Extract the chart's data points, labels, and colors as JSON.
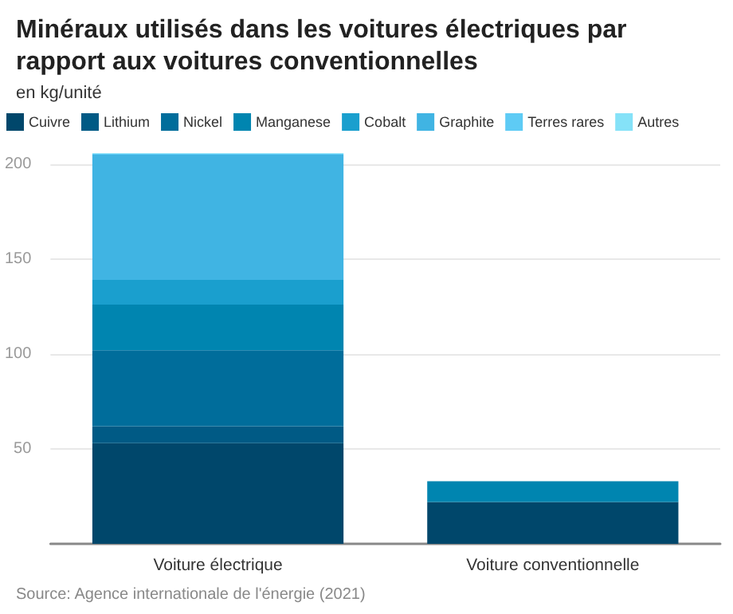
{
  "chart_data": {
    "type": "bar",
    "title": "Minéraux utilisés dans les voitures électriques par rapport aux voitures conventionnelles",
    "subtitle": "en kg/unité",
    "categories": [
      "Voiture électrique",
      "Voiture conventionnelle"
    ],
    "stacked": true,
    "series": [
      {
        "name": "Cuivre",
        "color": "#00476b",
        "values": [
          53,
          22
        ]
      },
      {
        "name": "Lithium",
        "color": "#005a85",
        "values": [
          9,
          null
        ]
      },
      {
        "name": "Nickel",
        "color": "#006d9b",
        "values": [
          40,
          null
        ]
      },
      {
        "name": "Manganese",
        "color": "#0085b0",
        "values": [
          24,
          11
        ]
      },
      {
        "name": "Cobalt",
        "color": "#1a9fce",
        "values": [
          13,
          null
        ]
      },
      {
        "name": "Graphite",
        "color": "#40b4e3",
        "values": [
          66,
          null
        ]
      },
      {
        "name": "Terres rares",
        "color": "#5ecbf5",
        "values": [
          0.5,
          null
        ]
      },
      {
        "name": "Autres",
        "color": "#85e2f8",
        "values": [
          0.3,
          null
        ]
      }
    ],
    "ylim": [
      0,
      205.8
    ],
    "yticks": [
      50,
      100,
      150,
      200
    ],
    "grid": "y",
    "legend": "top left",
    "annotations": [
      "Source: Agence internationale de l'énergie (2021)"
    ]
  }
}
